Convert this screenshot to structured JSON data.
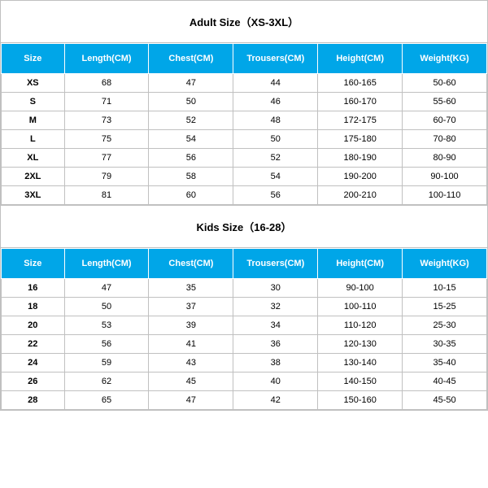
{
  "adult": {
    "title": "Adult Size（XS-3XL）",
    "title_fontsize": 13,
    "header_bg": "#00a6e8",
    "header_fg": "#ffffff",
    "border_color": "#c0c0c0",
    "columns": [
      "Size",
      "Length(CM)",
      "Chest(CM)",
      "Trousers(CM)",
      "Height(CM)",
      "Weight(KG)"
    ],
    "rows": [
      [
        "XS",
        "68",
        "47",
        "44",
        "160-165",
        "50-60"
      ],
      [
        "S",
        "71",
        "50",
        "46",
        "160-170",
        "55-60"
      ],
      [
        "M",
        "73",
        "52",
        "48",
        "172-175",
        "60-70"
      ],
      [
        "L",
        "75",
        "54",
        "50",
        "175-180",
        "70-80"
      ],
      [
        "XL",
        "77",
        "56",
        "52",
        "180-190",
        "80-90"
      ],
      [
        "2XL",
        "79",
        "58",
        "54",
        "190-200",
        "90-100"
      ],
      [
        "3XL",
        "81",
        "60",
        "56",
        "200-210",
        "100-110"
      ]
    ]
  },
  "kids": {
    "title": "Kids Size（16-28）",
    "title_fontsize": 13,
    "header_bg": "#00a6e8",
    "header_fg": "#ffffff",
    "border_color": "#c0c0c0",
    "columns": [
      "Size",
      "Length(CM)",
      "Chest(CM)",
      "Trousers(CM)",
      "Height(CM)",
      "Weight(KG)"
    ],
    "rows": [
      [
        "16",
        "47",
        "35",
        "30",
        "90-100",
        "10-15"
      ],
      [
        "18",
        "50",
        "37",
        "32",
        "100-110",
        "15-25"
      ],
      [
        "20",
        "53",
        "39",
        "34",
        "110-120",
        "25-30"
      ],
      [
        "22",
        "56",
        "41",
        "36",
        "120-130",
        "30-35"
      ],
      [
        "24",
        "59",
        "43",
        "38",
        "130-140",
        "35-40"
      ],
      [
        "26",
        "62",
        "45",
        "40",
        "140-150",
        "40-45"
      ],
      [
        "28",
        "65",
        "47",
        "42",
        "150-160",
        "45-50"
      ]
    ]
  }
}
